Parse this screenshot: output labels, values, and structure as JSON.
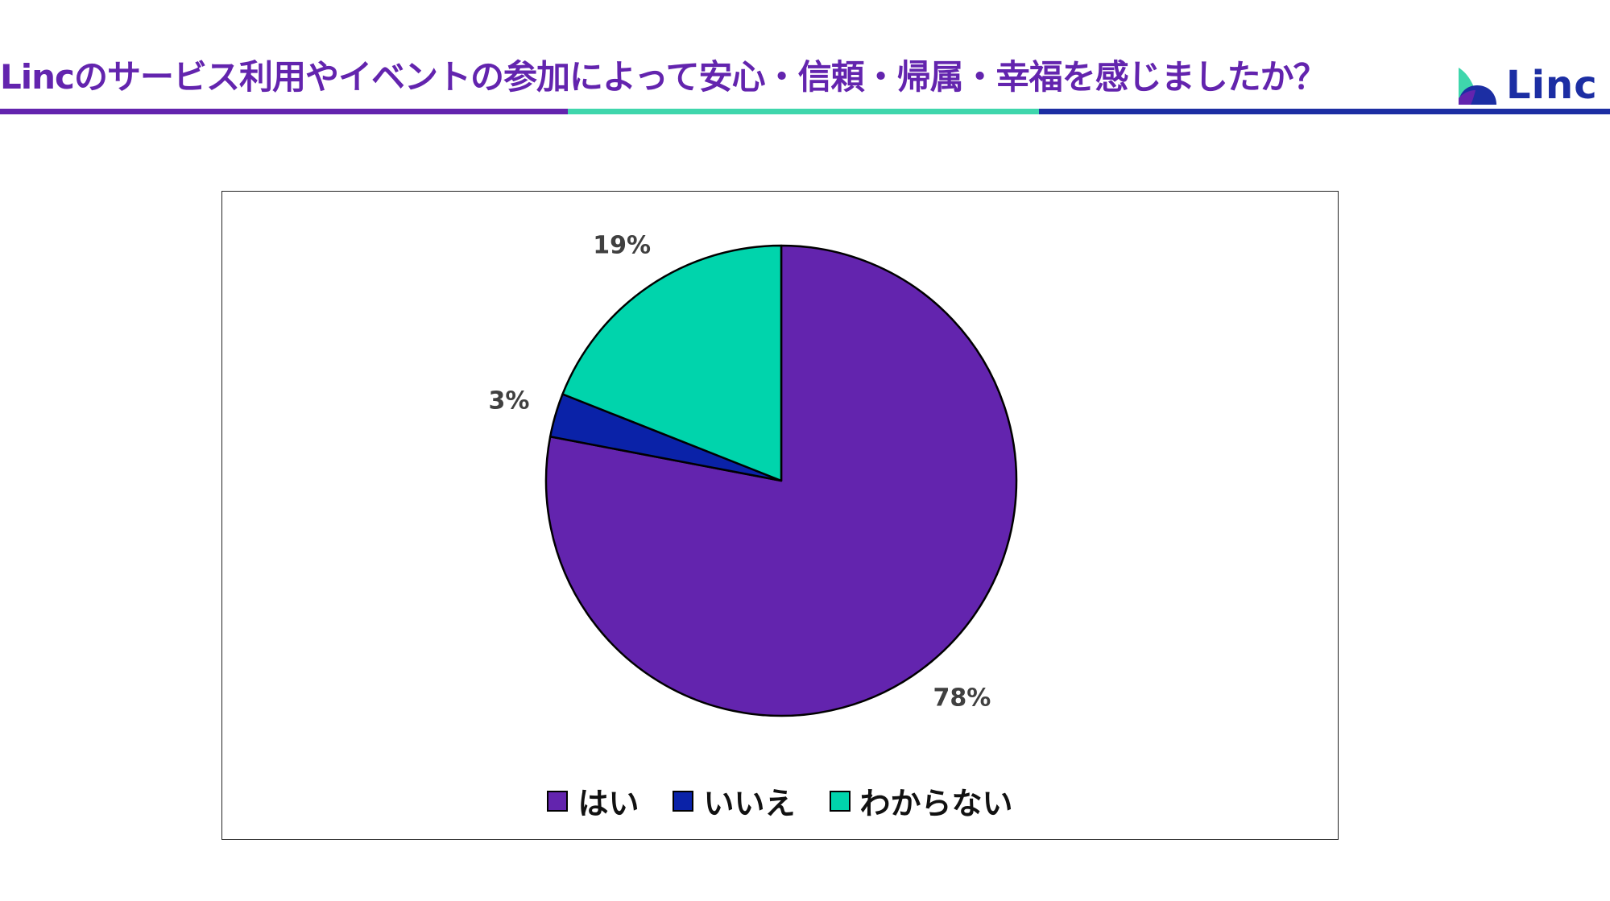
{
  "header": {
    "title": "Lincのサービス利用やイベントの参加によって安心・信頼・帰属・幸福を感じましたか？",
    "logo_text": "Linc",
    "colors": {
      "purple": "#6324ae",
      "teal": "#3fd6ac",
      "navy": "#1c2ea3"
    }
  },
  "chart_data": {
    "type": "pie",
    "start_angle_deg": 0,
    "direction": "clockwise",
    "slices": [
      {
        "label": "はい",
        "value": 78,
        "value_label": "78%",
        "color": "#6324ae"
      },
      {
        "label": "いいえ",
        "value": 3,
        "value_label": "3%",
        "color": "#0a22a8"
      },
      {
        "label": "わからない",
        "value": 19,
        "value_label": "19%",
        "color": "#00d4ac"
      }
    ],
    "legend_placement": "bottom"
  }
}
